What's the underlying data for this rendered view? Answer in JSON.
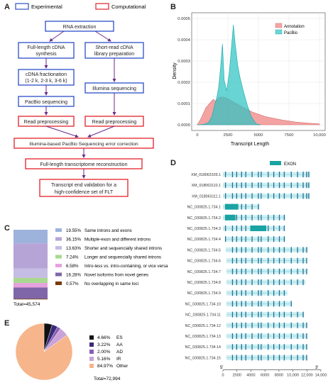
{
  "panels": [
    "A",
    "B",
    "C",
    "D",
    "E"
  ],
  "flowchart": {
    "legend": {
      "experimental": "Experimental",
      "computational": "Computational"
    },
    "colors": {
      "experimental": "#2b4fc9",
      "computational": "#e3202a",
      "arrow": "#6a2a8a"
    },
    "steps": {
      "rna": "RNA extraction",
      "flcdna_1": "Full-length cDNA",
      "flcdna_2": "synthesis",
      "short_1": "Short-read cDNA",
      "short_2": "library preparation",
      "frac_1": "cDNA fractionation",
      "frac_2": "(1-2 k, 2-3 k, 3-6 k)",
      "illumina": "Illumina sequencing",
      "pacbio": "PacBio sequencing",
      "read_pre_left": "Read preprocessing",
      "read_pre_right": "Read preprocessing",
      "correction": "Illumina-based PacBio Sequencing error correction",
      "reconstruction": "Full-length transcriptome reconstruction",
      "validation_1": "Transcript end validation for a",
      "validation_2": "high-confidence set of FLT"
    }
  },
  "density": {
    "ylabel": "Density",
    "xlabel": "Transcript Length",
    "legend": [
      "Annotation",
      "PacBio"
    ],
    "colors": {
      "annotation": "#f08080",
      "pacbio": "#2ec4c4"
    },
    "y_ticks": [
      "0.0000",
      "0.0001",
      "0.0002",
      "0.0003",
      "0.0004",
      "0.0005"
    ],
    "x_ticks": [
      "0",
      "2500",
      "5000",
      "7500",
      "10,000"
    ]
  },
  "chart_data": [
    {
      "type": "area",
      "xlabel": "Transcript Length",
      "ylabel": "Density",
      "xlim": [
        0,
        10000
      ],
      "ylim": [
        0,
        0.00055
      ],
      "legend_position": "top-right",
      "series": [
        {
          "name": "Annotation",
          "x": [
            0,
            300,
            700,
            1000,
            1300,
            1500,
            1800,
            2200,
            2600,
            3000,
            3500,
            4000,
            4500,
            5000,
            5500,
            6000,
            7000,
            8000,
            9000,
            10000
          ],
          "y": [
            0,
            3e-05,
            8e-05,
            0.0001,
            0.00012,
            0.00011,
            0.00013,
            0.00013,
            0.00012,
            0.000105,
            9e-05,
            7.5e-05,
            6e-05,
            5e-05,
            4e-05,
            3.3e-05,
            2.2e-05,
            1.3e-05,
            8e-06,
            4e-06
          ]
        },
        {
          "name": "PacBio",
          "x": [
            0,
            500,
            900,
            1200,
            1400,
            1600,
            1750,
            1900,
            2050,
            2200,
            2400,
            2600,
            2800,
            2950,
            3100,
            3300,
            3500,
            3800,
            4100,
            4400,
            4800,
            5200
          ],
          "y": [
            0,
            2e-06,
            1e-05,
            4e-05,
            9e-05,
            0.00013,
            0.00018,
            0.00027,
            0.00038,
            0.00021,
            0.00016,
            0.00024,
            0.00037,
            0.00047,
            0.00038,
            0.00028,
            0.00022,
            0.00015,
            9e-05,
            4e-05,
            5e-06,
            0
          ]
        }
      ]
    },
    {
      "type": "bar",
      "stacked": true,
      "total_label": "Total=45,574",
      "categories": [
        "Same introns and exons",
        "Multiple-exon and different introns",
        "Shorter and sequencially shared introns",
        "Longer and sequencially shared introns",
        "Intro-less vs. intro-containing, or vice versa",
        "Novel isoforms from novel genes",
        "No overlapping in same loci"
      ],
      "values": [
        19.55,
        36.15,
        13.63,
        7.24,
        6.58,
        16.28,
        0.57
      ],
      "labels": [
        "19.55%",
        "36.15%",
        "13.63%",
        "7.24%",
        "6.58%",
        "16.28%",
        "0.57%"
      ],
      "colors": [
        "#9db3dc",
        "#b7a4d6",
        "#c5bde3",
        "#a8d98f",
        "#e6a2dc",
        "#7e66a8",
        "#7a3a0a"
      ]
    },
    {
      "type": "pie",
      "total_label": "Total=72,994",
      "categories": [
        "ES",
        "AA",
        "AD",
        "IR",
        "Other"
      ],
      "values": [
        4.66,
        3.22,
        2.0,
        5.16,
        84.97
      ],
      "labels": [
        "4.66%",
        "3.22%",
        "2.00%",
        "5.16%",
        "84.97%"
      ],
      "colors": [
        "#111111",
        "#3a2a7a",
        "#8b5fb5",
        "#c9a3d8",
        "#f6b58a"
      ]
    }
  ],
  "gene_models": {
    "legend": "EXON",
    "tracks": [
      "XM_018063109.1",
      "XM_018063110.1",
      "XM_018063111.1",
      "NC_030825.1.734.1",
      "NC_030825.1.734.2",
      "NC_030825.1.734.3",
      "NC_030825.1.734.4",
      "NC_030825.1.734.5",
      "NC_030825.1.734.6",
      "NC_030825.1.734.7",
      "NC_030825.1.734.8",
      "NC_030825.1.734.9",
      "NC_030825.1.734.10",
      "NC_030825.1.734.11",
      "NC_030825.1.734.12",
      "NC_030825.1.734.13",
      "NC_030825.1.734.14",
      "NC_030825.1.734.15"
    ],
    "axis_ticks": [
      "0",
      "2000",
      "4000",
      "6000",
      "8000",
      "10,000",
      "12,000",
      "14,000"
    ],
    "five_prime": "5'",
    "three_prime": "3'",
    "colors": {
      "exon": "#1aa3a3",
      "exon_dark": "#1f6f96",
      "span": "#cdeff2",
      "axis": "#333333"
    }
  }
}
